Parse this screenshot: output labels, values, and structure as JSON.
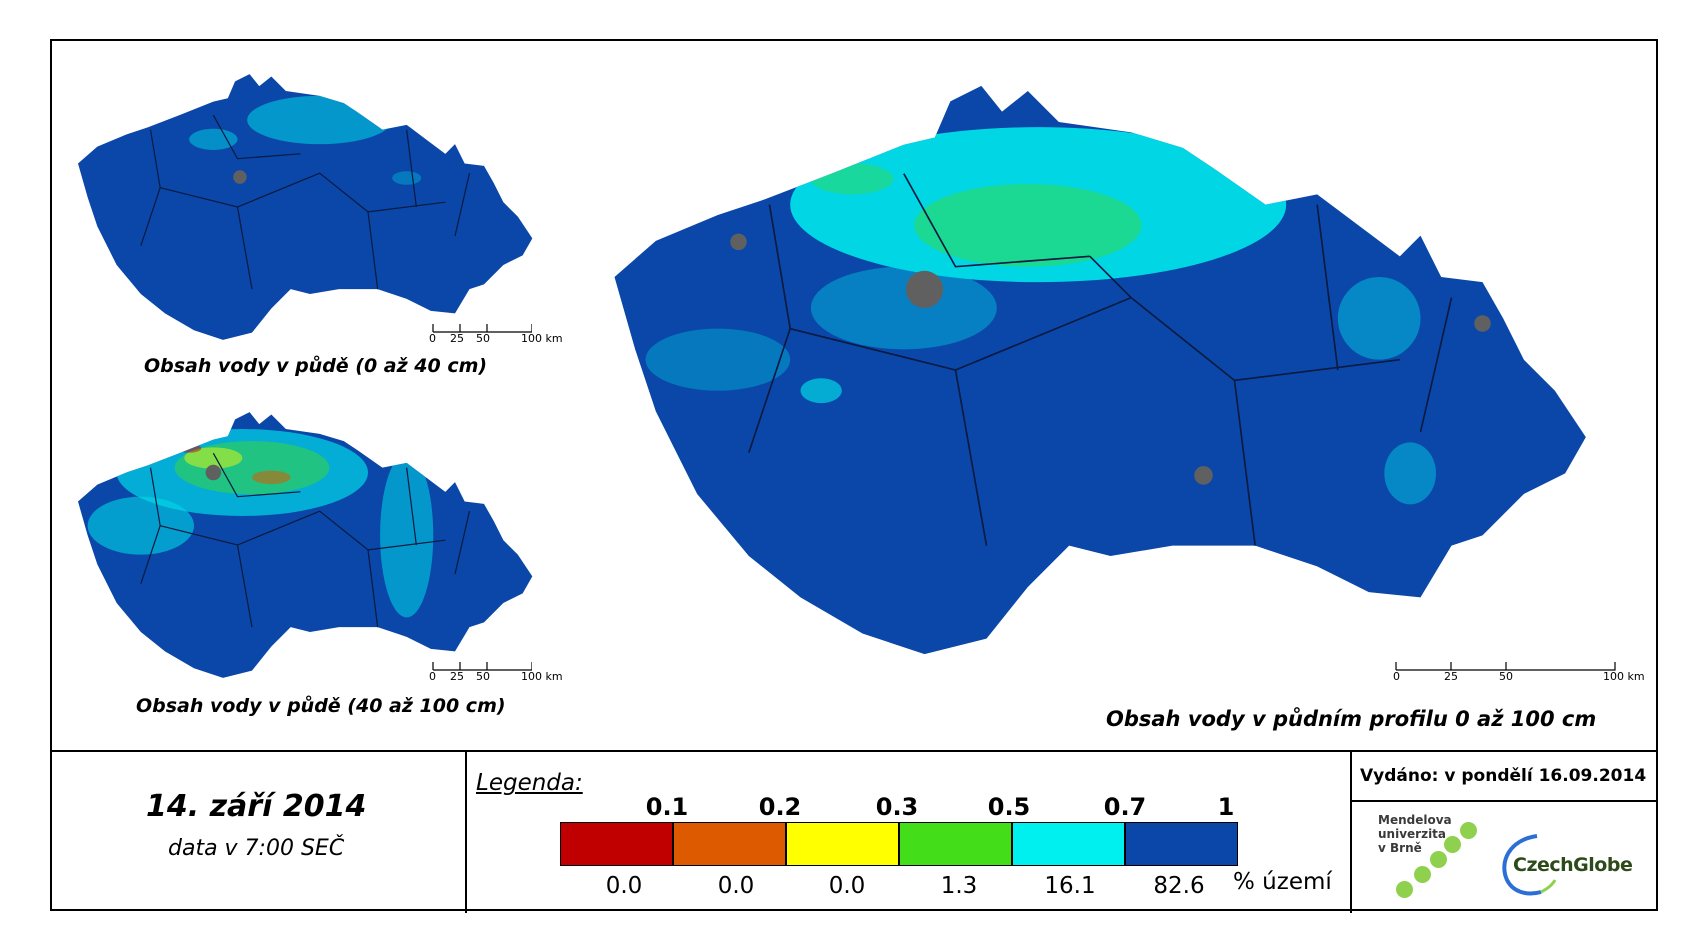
{
  "maps": {
    "small_top": {
      "title": "Obsah vody v půdě (0 až 40 cm)",
      "scale_labels": [
        "0",
        "25",
        "50",
        "100 km"
      ]
    },
    "small_bottom": {
      "title": "Obsah vody v půdě (40 až 100 cm)",
      "scale_labels": [
        "0",
        "25",
        "50",
        "100 km"
      ]
    },
    "large": {
      "title": "Obsah vody v půdním profilu 0 až 100 cm",
      "scale_labels": [
        "0",
        "25",
        "50",
        "100 km"
      ]
    }
  },
  "date": {
    "main": "14. září 2014",
    "sub": "data v 7:00 SEČ"
  },
  "legend": {
    "title": "Legenda:",
    "thresholds": [
      "0.1",
      "0.2",
      "0.3",
      "0.5",
      "0.7",
      "1"
    ],
    "percentages": [
      "0.0",
      "0.0",
      "0.0",
      "1.3",
      "16.1",
      "82.6"
    ],
    "unit": "% území",
    "colors": [
      "#c00000",
      "#dd5a00",
      "#ffff00",
      "#44dd1a",
      "#00f0f0",
      "#0a47a8"
    ]
  },
  "issued": "Vydáno: v pondělí 16.09.2014",
  "logos": {
    "mendel": [
      "Mendelova",
      "univerzita",
      "v Brně"
    ],
    "czechglobe": "CzechGlobe"
  }
}
